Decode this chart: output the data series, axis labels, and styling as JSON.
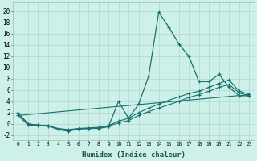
{
  "xlabel": "Humidex (Indice chaleur)",
  "background_color": "#cdf0e8",
  "grid_color": "#b0d8d0",
  "line_color": "#1a7070",
  "xlim": [
    -0.5,
    23.5
  ],
  "ylim": [
    -2.8,
    21.5
  ],
  "xticks": [
    0,
    1,
    2,
    3,
    4,
    5,
    6,
    7,
    8,
    9,
    10,
    11,
    12,
    13,
    14,
    15,
    16,
    17,
    18,
    19,
    20,
    21,
    22,
    23
  ],
  "yticks": [
    -2,
    0,
    2,
    4,
    6,
    8,
    10,
    12,
    14,
    16,
    18,
    20
  ],
  "series1_x": [
    0,
    1,
    2,
    3,
    4,
    5,
    6,
    7,
    8,
    9,
    10,
    11,
    12,
    13,
    14,
    15,
    16,
    17,
    18,
    19,
    20,
    21,
    22,
    23
  ],
  "series1_y": [
    2,
    0,
    -0.2,
    -0.3,
    -1.0,
    -1.3,
    -0.9,
    -0.8,
    -0.8,
    -0.5,
    4.0,
    1.0,
    3.5,
    8.5,
    19.8,
    17.2,
    14.2,
    12.0,
    7.5,
    7.5,
    8.8,
    6.5,
    5.0,
    5.0
  ],
  "series2_x": [
    0,
    1,
    2,
    3,
    4,
    5,
    6,
    7,
    8,
    9,
    10,
    11,
    12,
    13,
    14,
    15,
    16,
    17,
    18,
    19,
    20,
    21,
    22,
    23
  ],
  "series2_y": [
    1.8,
    0.0,
    -0.2,
    -0.3,
    -0.8,
    -1.0,
    -0.8,
    -0.7,
    -0.6,
    -0.3,
    0.5,
    1.0,
    2.0,
    2.8,
    3.5,
    4.2,
    4.8,
    5.4,
    5.8,
    6.5,
    7.2,
    7.8,
    5.8,
    5.3
  ],
  "series3_x": [
    0,
    1,
    2,
    3,
    4,
    5,
    6,
    7,
    8,
    9,
    10,
    11,
    12,
    13,
    14,
    15,
    16,
    17,
    18,
    19,
    20,
    21,
    22,
    23
  ],
  "series3_y": [
    1.5,
    -0.2,
    -0.3,
    -0.4,
    -0.9,
    -1.1,
    -0.9,
    -0.8,
    -0.7,
    -0.4,
    0.2,
    0.6,
    1.5,
    2.2,
    2.8,
    3.4,
    4.0,
    4.7,
    5.2,
    5.8,
    6.5,
    7.0,
    5.5,
    5.0
  ],
  "series4_x": [
    0,
    23
  ],
  "series4_y": [
    1.5,
    5.2
  ]
}
